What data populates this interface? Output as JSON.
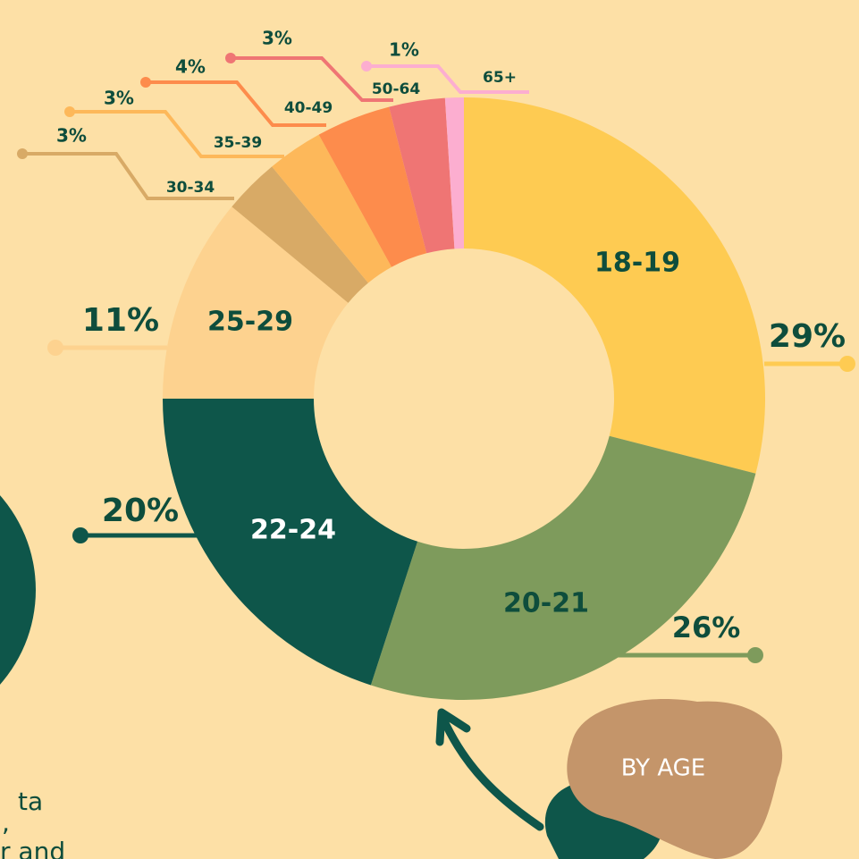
{
  "chart_data": {
    "type": "donut",
    "categories": [
      "18-19",
      "20-21",
      "22-24",
      "25-29",
      "30-34",
      "35-39",
      "40-49",
      "50-64",
      "65+"
    ],
    "values": [
      29,
      26,
      20,
      11,
      3,
      3,
      4,
      3,
      1
    ],
    "value_labels": [
      "29%",
      "26%",
      "20%",
      "11%",
      "3%",
      "3%",
      "4%",
      "3%",
      "1%"
    ],
    "colors": [
      "#fecb52",
      "#7e9b5c",
      "#0e564a",
      "#fdd28f",
      "#d8aa66",
      "#fdb85a",
      "#fd8c4c",
      "#ef7574",
      "#fcaed0"
    ],
    "annotation": "BY AGE",
    "fragments": [
      "ta",
      ",",
      "r and"
    ]
  }
}
